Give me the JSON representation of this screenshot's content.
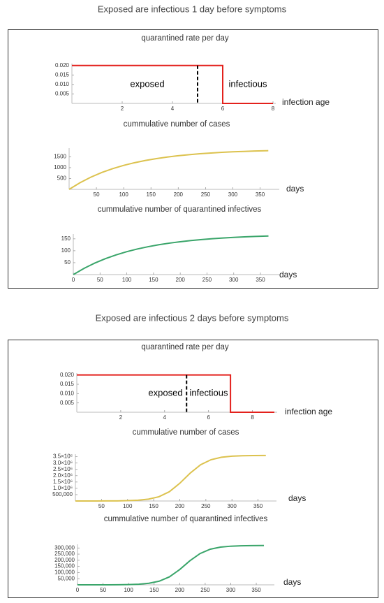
{
  "figure_titles": [
    "Exposed are infectious 1 day before symptoms",
    "Exposed are infectious 2 days before symptoms"
  ],
  "chart_data": [
    {
      "type": "line",
      "title": "quarantined rate per day",
      "xlabel": "infection age",
      "color": "#e3211c",
      "x": [
        0,
        6,
        6,
        8
      ],
      "values": [
        0.02,
        0.02,
        0,
        0
      ],
      "divider_x": 5,
      "annotations": [
        "exposed",
        "infectious"
      ],
      "xlim": [
        0,
        8
      ],
      "ylim": [
        0,
        0.021
      ],
      "xticks": [
        2,
        4,
        6,
        8
      ],
      "yticks": [
        0.005,
        {
          "value": 0.01,
          "label": "0.010"
        },
        0.015,
        {
          "value": 0.02,
          "label": "0.020"
        }
      ]
    },
    {
      "type": "line",
      "title": "cummulative number of cases",
      "xlabel": "days",
      "color": "#dcc24e",
      "x": [
        0,
        20,
        40,
        60,
        80,
        100,
        120,
        140,
        160,
        180,
        200,
        220,
        240,
        260,
        280,
        300,
        320,
        340,
        360,
        365
      ],
      "values": [
        0,
        307,
        564,
        778,
        956,
        1105,
        1229,
        1332,
        1418,
        1490,
        1550,
        1600,
        1641,
        1676,
        1705,
        1729,
        1749,
        1766,
        1780,
        1783
      ],
      "xlim": [
        0,
        380
      ],
      "ylim": [
        0,
        1900
      ],
      "xticks": [
        50,
        100,
        150,
        200,
        250,
        300,
        350
      ],
      "yticks": [
        500,
        1000,
        1500
      ]
    },
    {
      "type": "line",
      "title": "cummulative number of quarantined infectives",
      "xlabel": "days",
      "color": "#3aa56a",
      "x": [
        0,
        20,
        40,
        60,
        80,
        100,
        120,
        140,
        160,
        180,
        200,
        220,
        240,
        260,
        280,
        300,
        320,
        340,
        360,
        365
      ],
      "values": [
        0,
        26.1,
        48.2,
        66.9,
        82.7,
        96.1,
        107.5,
        117.1,
        125.2,
        132.1,
        137.9,
        142.8,
        147.0,
        150.5,
        153.5,
        156.0,
        158.2,
        160.0,
        161.5,
        161.9
      ],
      "xlim": [
        0,
        380
      ],
      "ylim": [
        0,
        170
      ],
      "xticks": [
        0,
        50,
        100,
        150,
        200,
        250,
        300,
        350
      ],
      "yticks": [
        50,
        100,
        150
      ]
    },
    {
      "type": "line",
      "title": "quarantined rate per day",
      "xlabel": "infection age",
      "color": "#e3211c",
      "x": [
        0,
        7,
        7,
        9
      ],
      "values": [
        0.02,
        0.02,
        0,
        0
      ],
      "divider_x": 5,
      "annotations": [
        "exposed",
        "infectious"
      ],
      "xlim": [
        0,
        9
      ],
      "ylim": [
        0,
        0.021
      ],
      "xticks": [
        2,
        4,
        6,
        8
      ],
      "yticks": [
        0.005,
        {
          "value": 0.01,
          "label": "0.010"
        },
        0.015,
        {
          "value": 0.02,
          "label": "0.020"
        }
      ]
    },
    {
      "type": "line",
      "title": "cummulative number of cases",
      "xlabel": "days",
      "color": "#dcc24e",
      "x": [
        0,
        20,
        40,
        60,
        80,
        100,
        120,
        140,
        160,
        180,
        200,
        220,
        240,
        260,
        280,
        300,
        320,
        340,
        360,
        365
      ],
      "values": [
        258,
        639,
        1587,
        3935,
        9756,
        24100,
        59200,
        143000,
        336000,
        733000,
        1398000,
        2202000,
        2867000,
        3264000,
        3457000,
        3541000,
        3576000,
        3590000,
        3596000,
        3597000
      ],
      "xlim": [
        0,
        380
      ],
      "ylim": [
        0,
        3700000
      ],
      "xticks": [
        50,
        100,
        150,
        200,
        250,
        300,
        350
      ],
      "yticks": [
        {
          "value": 500000,
          "label": "500,000"
        },
        {
          "value": 1000000,
          "label": "1.0×10⁶"
        },
        {
          "value": 1500000,
          "label": "1.5×10⁶"
        },
        {
          "value": 2000000,
          "label": "2.0×10⁶"
        },
        {
          "value": 2500000,
          "label": "2.5×10⁶"
        },
        {
          "value": 3000000,
          "label": "3.0×10⁶"
        },
        {
          "value": 3500000,
          "label": "3.5×10⁶"
        }
      ]
    },
    {
      "type": "line",
      "title": "cummulative number of quarantined infectives",
      "xlabel": "days",
      "color": "#3aa56a",
      "x": [
        0,
        20,
        40,
        60,
        80,
        100,
        120,
        140,
        160,
        180,
        200,
        220,
        240,
        260,
        280,
        300,
        320,
        340,
        360,
        365
      ],
      "values": [
        23,
        57,
        141,
        350,
        867,
        2140,
        5260,
        12740,
        29900,
        65100,
        124300,
        195700,
        254800,
        290100,
        307200,
        314700,
        317900,
        319100,
        319700,
        319700
      ],
      "xlim": [
        0,
        380
      ],
      "ylim": [
        0,
        330000
      ],
      "xticks": [
        0,
        50,
        100,
        150,
        200,
        250,
        300,
        350
      ],
      "yticks": [
        {
          "value": 50000,
          "label": "50,000"
        },
        {
          "value": 100000,
          "label": "100,000"
        },
        {
          "value": 150000,
          "label": "150,000"
        },
        {
          "value": 200000,
          "label": "200,000"
        },
        {
          "value": 250000,
          "label": "250,000"
        },
        {
          "value": 300000,
          "label": "300,000"
        }
      ]
    }
  ]
}
